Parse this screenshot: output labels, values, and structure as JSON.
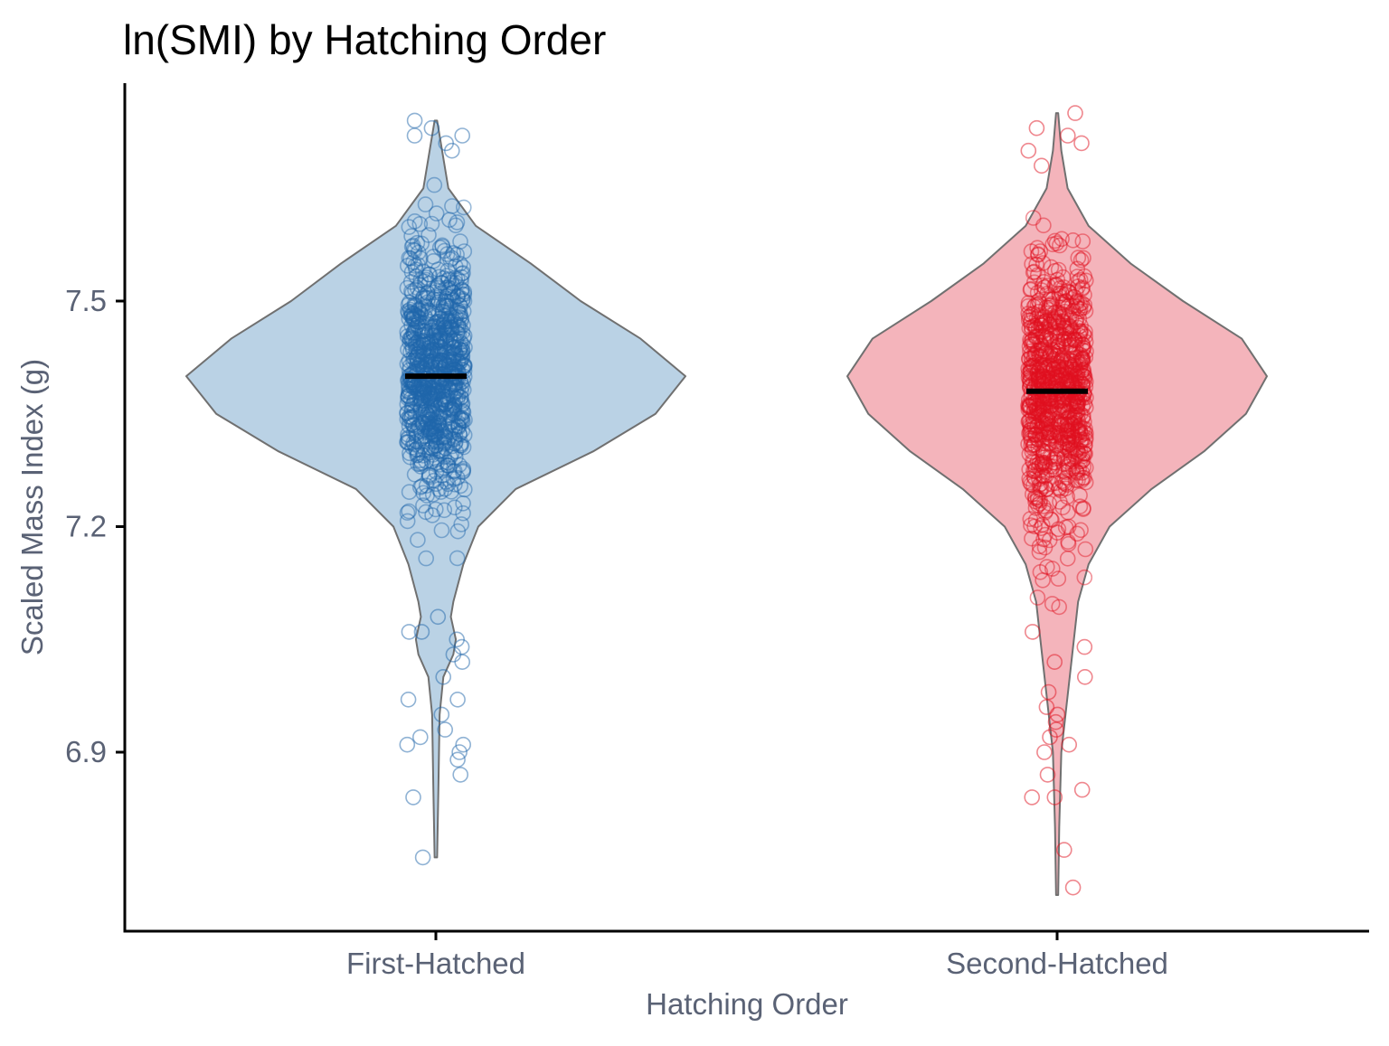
{
  "chart_data": {
    "type": "violin",
    "title": "ln(SMI) by Hatching Order",
    "xlabel": "Hatching Order",
    "ylabel": "Scaled Mass Index (g)",
    "categories": [
      "First-Hatched",
      "Second-Hatched"
    ],
    "y_ticks": [
      "6.9",
      "7.2",
      "7.5"
    ],
    "ylim": [
      6.66,
      7.76
    ],
    "grid": false,
    "legend": "none",
    "series": [
      {
        "category": "First-Hatched",
        "median": 7.4,
        "min": 6.75,
        "max": 7.74,
        "fill_color": "#bad2e5",
        "point_color": "#1f66aa",
        "density": [
          [
            6.76,
            0.005
          ],
          [
            6.85,
            0.01
          ],
          [
            6.95,
            0.015
          ],
          [
            7.0,
            0.03
          ],
          [
            7.03,
            0.07
          ],
          [
            7.05,
            0.08
          ],
          [
            7.08,
            0.06
          ],
          [
            7.1,
            0.07
          ],
          [
            7.15,
            0.11
          ],
          [
            7.2,
            0.17
          ],
          [
            7.25,
            0.32
          ],
          [
            7.3,
            0.63
          ],
          [
            7.35,
            0.88
          ],
          [
            7.4,
            1.0
          ],
          [
            7.45,
            0.82
          ],
          [
            7.5,
            0.58
          ],
          [
            7.55,
            0.38
          ],
          [
            7.6,
            0.16
          ],
          [
            7.65,
            0.05
          ],
          [
            7.7,
            0.025
          ],
          [
            7.74,
            0.005
          ]
        ],
        "outliers": [
          6.76,
          6.84,
          6.87,
          6.89,
          6.9,
          6.91,
          6.91,
          6.92,
          6.93,
          6.95,
          6.97,
          6.97,
          7.0,
          7.02,
          7.03,
          7.04,
          7.05,
          7.06,
          7.06,
          7.08,
          7.72,
          7.71,
          7.74,
          7.73,
          7.72,
          7.7
        ]
      },
      {
        "category": "Second-Hatched",
        "median": 7.38,
        "min": 6.71,
        "max": 7.75,
        "fill_color": "#f4b4bb",
        "point_color": "#e0101e",
        "density": [
          [
            6.71,
            0.005
          ],
          [
            6.8,
            0.01
          ],
          [
            6.9,
            0.02
          ],
          [
            6.95,
            0.04
          ],
          [
            7.0,
            0.06
          ],
          [
            7.05,
            0.08
          ],
          [
            7.1,
            0.1
          ],
          [
            7.15,
            0.15
          ],
          [
            7.2,
            0.25
          ],
          [
            7.25,
            0.45
          ],
          [
            7.3,
            0.7
          ],
          [
            7.35,
            0.9
          ],
          [
            7.4,
            1.0
          ],
          [
            7.45,
            0.88
          ],
          [
            7.5,
            0.6
          ],
          [
            7.55,
            0.35
          ],
          [
            7.6,
            0.15
          ],
          [
            7.65,
            0.05
          ],
          [
            7.7,
            0.02
          ],
          [
            7.75,
            0.005
          ]
        ],
        "outliers": [
          6.72,
          6.77,
          6.84,
          6.84,
          6.85,
          6.87,
          6.9,
          6.91,
          6.92,
          6.93,
          6.94,
          6.95,
          6.96,
          6.98,
          7.0,
          7.02,
          7.04,
          7.06,
          7.72,
          7.73,
          7.71,
          7.75,
          7.7,
          7.68
        ]
      }
    ]
  }
}
